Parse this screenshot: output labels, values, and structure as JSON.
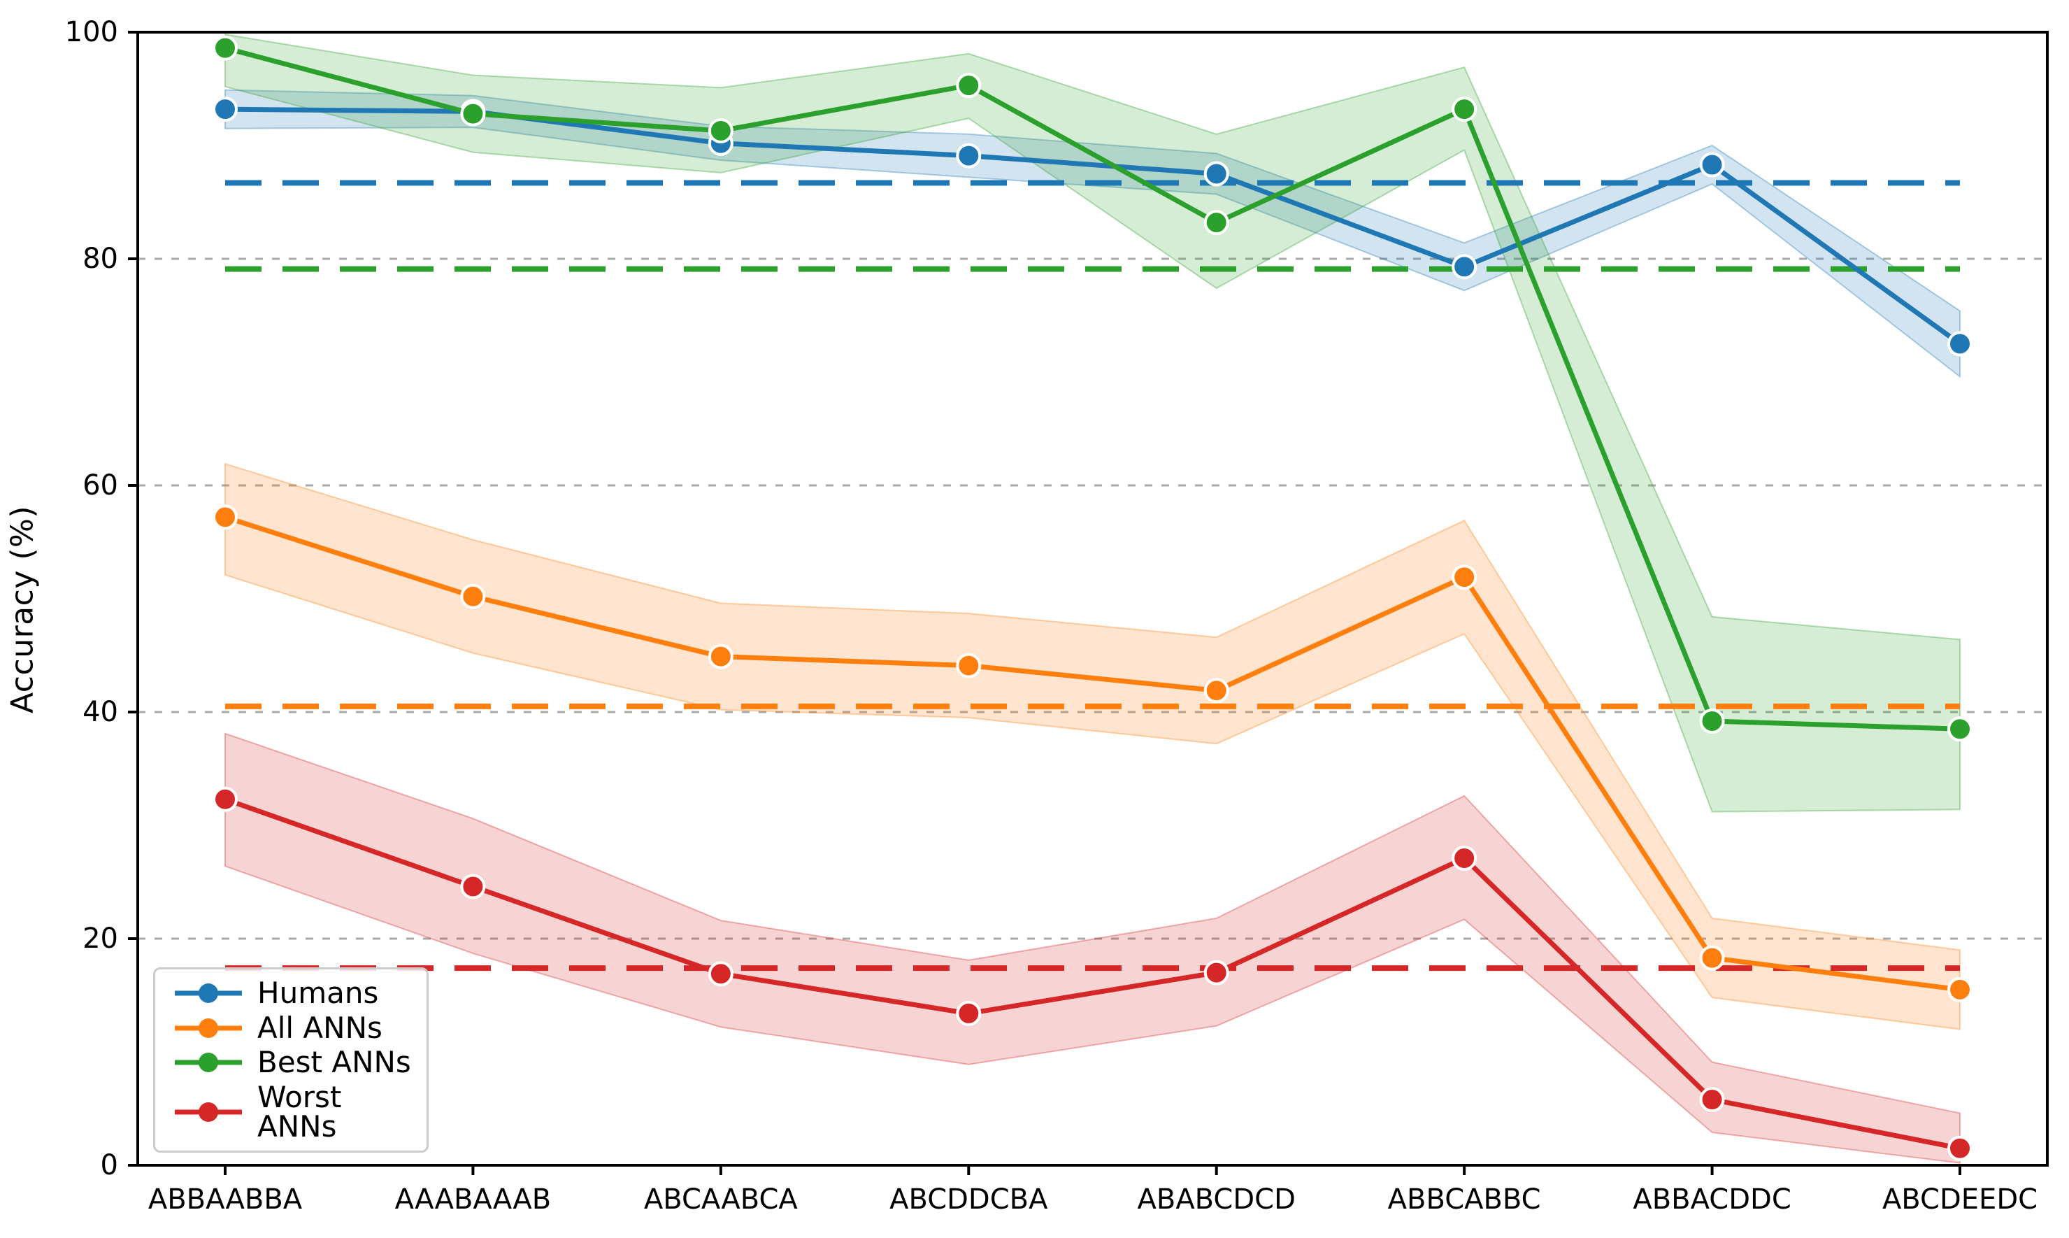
{
  "figure": {
    "ylabel": "Accuracy (%)"
  },
  "chart_data": {
    "type": "line",
    "title": "",
    "xlabel": "",
    "ylabel": "Accuracy (%)",
    "ylim": [
      0,
      100
    ],
    "yticks": [
      0,
      20,
      40,
      60,
      80,
      100
    ],
    "grid": "horizontal dashed gridlines at 20, 40, 60, 80",
    "legend_position": "lower left",
    "categories": [
      "ABBAABBA",
      "AAABAAAB",
      "ABCAABCA",
      "ABCDDCBA",
      "ABABCDCD",
      "ABBCABBC",
      "ABBACDDC",
      "ABCDEEDC"
    ],
    "series": [
      {
        "name": "Humans",
        "color": "#1f77b4",
        "values": [
          93.2,
          93.0,
          90.2,
          89.1,
          87.5,
          79.3,
          88.3,
          72.5
        ],
        "band_upper": [
          94.9,
          94.4,
          91.7,
          91.0,
          89.3,
          81.4,
          90.0,
          75.4
        ],
        "band_lower": [
          91.5,
          91.6,
          88.7,
          87.2,
          85.7,
          77.2,
          86.6,
          69.6
        ],
        "dashed_mean_line": 86.7
      },
      {
        "name": "All ANNs",
        "color": "#ff7f0e",
        "values": [
          57.2,
          50.2,
          44.9,
          44.1,
          41.9,
          51.9,
          18.3,
          15.5
        ],
        "band_upper": [
          61.9,
          55.2,
          49.6,
          48.7,
          46.6,
          56.9,
          21.8,
          19.0
        ],
        "band_lower": [
          52.1,
          45.2,
          40.2,
          39.5,
          37.2,
          46.9,
          14.8,
          12.0
        ],
        "dashed_mean_line": 40.5
      },
      {
        "name": "Best ANNs",
        "color": "#2ca02c",
        "values": [
          98.6,
          92.8,
          91.3,
          95.3,
          83.2,
          93.2,
          39.2,
          38.5
        ],
        "band_upper": [
          99.8,
          96.2,
          95.1,
          98.1,
          91.0,
          96.9,
          48.4,
          46.4
        ],
        "band_lower": [
          95.2,
          89.4,
          87.6,
          92.4,
          77.4,
          89.6,
          31.2,
          31.4
        ],
        "dashed_mean_line": 79.1
      },
      {
        "name": "Worst ANNs",
        "color": "#d62728",
        "values": [
          32.3,
          24.6,
          16.9,
          13.4,
          17.0,
          27.1,
          5.8,
          1.5
        ],
        "band_upper": [
          38.1,
          30.6,
          21.6,
          18.1,
          21.8,
          32.6,
          9.1,
          4.6
        ],
        "band_lower": [
          26.4,
          18.7,
          12.2,
          8.9,
          12.3,
          21.7,
          2.9,
          0.2
        ],
        "dashed_mean_line": 17.4
      }
    ],
    "band_opacity": 0.2,
    "colors": {
      "grid": "#a9a9a9",
      "axis": "#000000",
      "background": "#ffffff",
      "legend_border": "#cccccc"
    }
  }
}
